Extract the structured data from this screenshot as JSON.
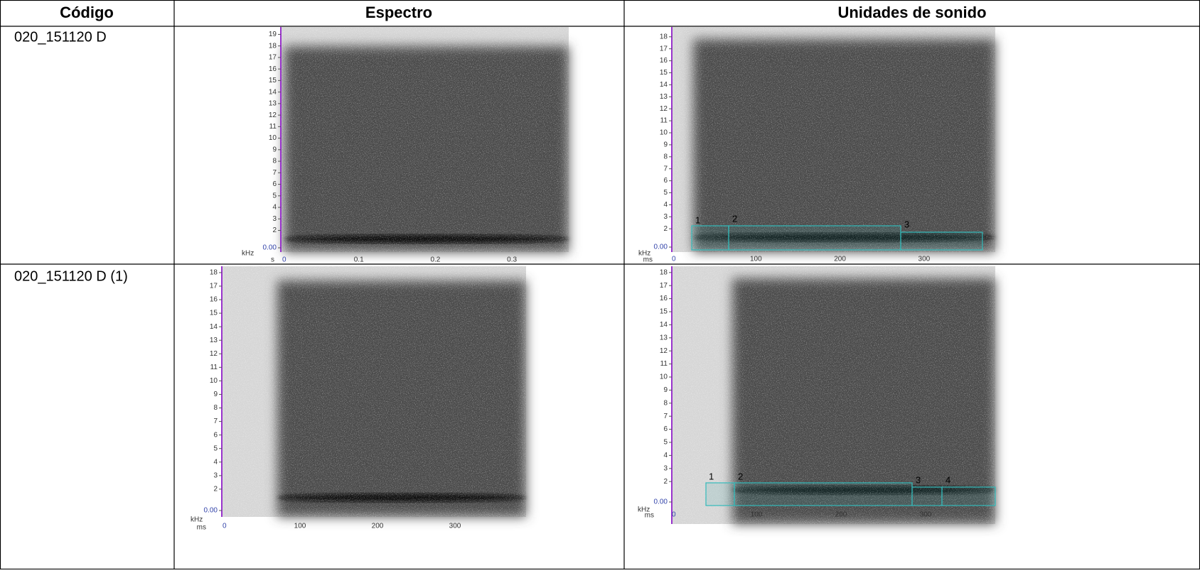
{
  "table": {
    "header": [
      "Código",
      "Espectro",
      "Unidades de sonido"
    ],
    "rows": [
      {
        "code": "020_151120 D",
        "spectrum": {
          "y_unit": "kHz",
          "x_unit": "s",
          "yticks": [
            "0.00",
            "2",
            "3",
            "4",
            "5",
            "6",
            "7",
            "8",
            "9",
            "10",
            "11",
            "12",
            "13",
            "14",
            "15",
            "16",
            "17",
            "18",
            "19"
          ],
          "xticks": [
            "0",
            "0.1",
            "0.2",
            "0.3"
          ]
        },
        "units": {
          "y_unit": "kHz",
          "x_unit": "ms",
          "yticks": [
            "0.00",
            "2",
            "3",
            "4",
            "5",
            "6",
            "7",
            "8",
            "9",
            "10",
            "11",
            "12",
            "13",
            "14",
            "15",
            "16",
            "17",
            "18"
          ],
          "xticks": [
            "0",
            "100",
            "200",
            "300"
          ],
          "segments": [
            "1",
            "2",
            "3"
          ]
        }
      },
      {
        "code": "020_151120 D (1)",
        "spectrum": {
          "y_unit": "kHz",
          "x_unit": "ms",
          "yticks": [
            "0.00",
            "2",
            "3",
            "4",
            "5",
            "6",
            "7",
            "8",
            "9",
            "10",
            "11",
            "12",
            "13",
            "14",
            "15",
            "16",
            "17",
            "18"
          ],
          "xticks": [
            "0",
            "100",
            "200",
            "300"
          ]
        },
        "units": {
          "y_unit": "kHz",
          "x_unit": "ms",
          "yticks": [
            "0.00",
            "2",
            "3",
            "4",
            "5",
            "6",
            "7",
            "8",
            "9",
            "10",
            "11",
            "12",
            "13",
            "14",
            "15",
            "16",
            "17",
            "18"
          ],
          "xticks": [
            "0",
            "100",
            "200",
            "300"
          ],
          "segments": [
            "1",
            "2",
            "3",
            "4"
          ]
        }
      }
    ]
  }
}
